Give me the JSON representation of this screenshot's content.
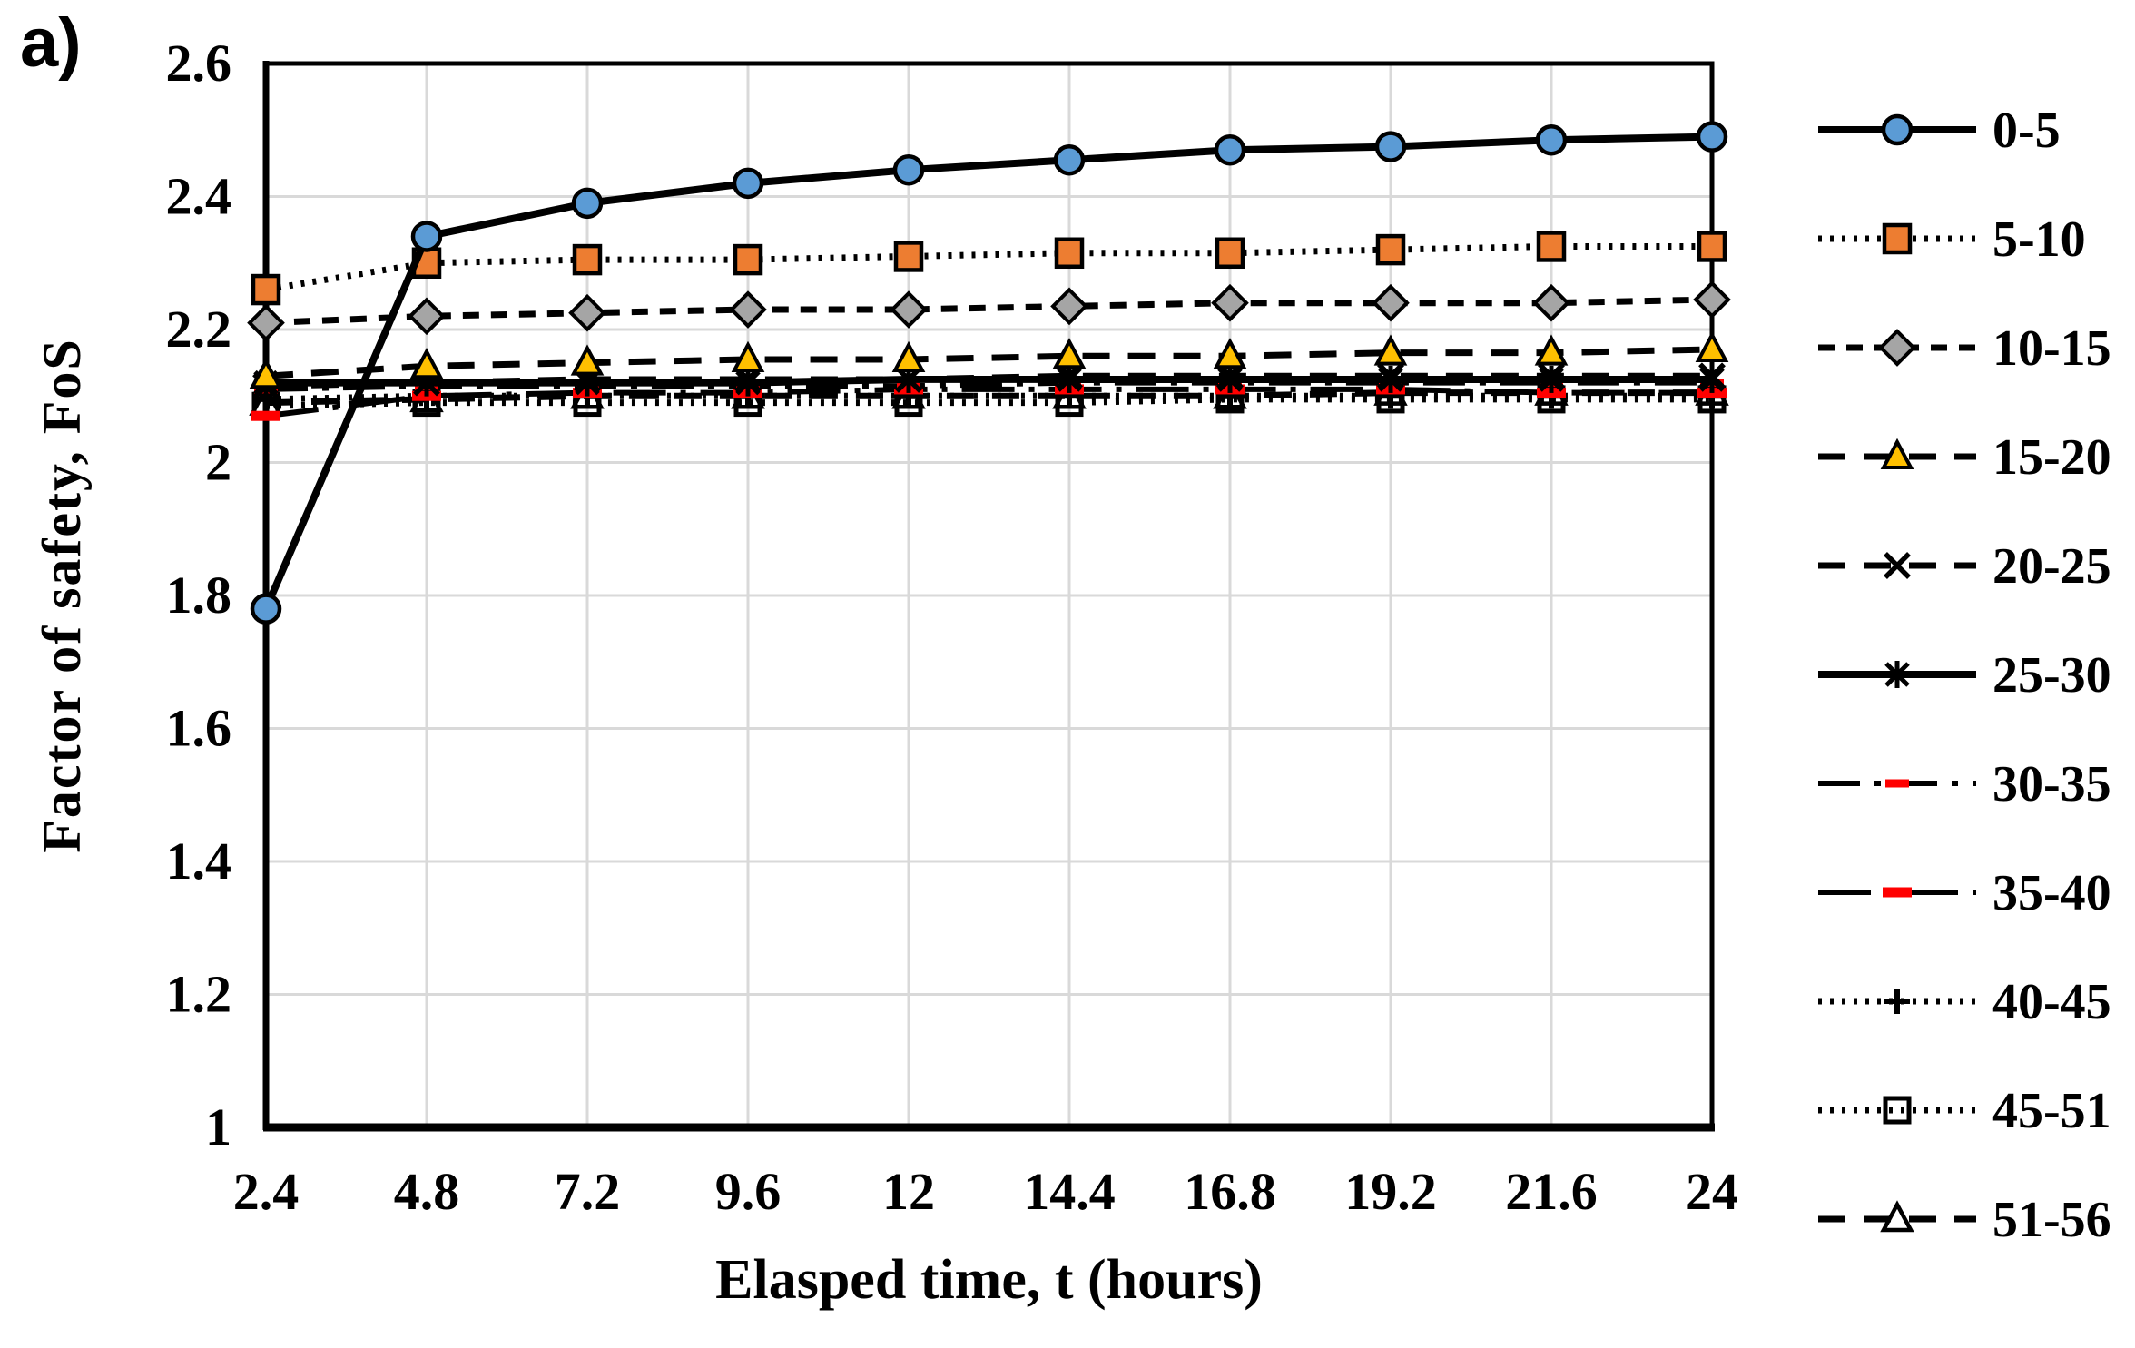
{
  "figure_label": "a)",
  "colors": {
    "background": "#FFFFFF",
    "grid": "#D9D9D9",
    "axis": "#000000",
    "series_blue": "#5B9BD5",
    "series_orange": "#ED7D31",
    "series_gray": "#A5A5A5",
    "series_yellow": "#FFC000",
    "series_red": "#FF0000",
    "series_black": "#000000"
  },
  "chart_data": {
    "type": "line",
    "title": "",
    "xlabel": "Elasped time, t (hours)",
    "ylabel": "Factor of safety, FoS",
    "xlim": [
      2.4,
      24
    ],
    "ylim": [
      1,
      2.6
    ],
    "grid": true,
    "legend_position": "right",
    "x": [
      2.4,
      4.8,
      7.2,
      9.6,
      12,
      14.4,
      16.8,
      19.2,
      21.6,
      24
    ],
    "xtick_labels": [
      "2.4",
      "4.8",
      "7.2",
      "9.6",
      "12",
      "14.4",
      "16.8",
      "19.2",
      "21.6",
      "24"
    ],
    "yticks": [
      1,
      1.2,
      1.4,
      1.6,
      1.8,
      2,
      2.2,
      2.4,
      2.6
    ],
    "ytick_labels": [
      "1",
      "1.2",
      "1.4",
      "1.6",
      "1.8",
      "2",
      "2.2",
      "2.4",
      "2.6"
    ],
    "series": [
      {
        "name": "0-5",
        "marker": "circle",
        "marker_color": "#5B9BD5",
        "line_color": "#000000",
        "line_style": "solid",
        "values": [
          1.78,
          2.34,
          2.39,
          2.42,
          2.44,
          2.455,
          2.47,
          2.475,
          2.485,
          2.49
        ]
      },
      {
        "name": "5-10",
        "marker": "square",
        "marker_color": "#ED7D31",
        "line_color": "#000000",
        "line_style": "dot",
        "values": [
          2.26,
          2.3,
          2.305,
          2.305,
          2.31,
          2.315,
          2.315,
          2.32,
          2.325,
          2.325
        ]
      },
      {
        "name": "10-15",
        "marker": "diamond",
        "marker_color": "#A5A5A5",
        "line_color": "#000000",
        "line_style": "dash",
        "values": [
          2.21,
          2.22,
          2.225,
          2.23,
          2.23,
          2.235,
          2.24,
          2.24,
          2.24,
          2.245
        ]
      },
      {
        "name": "15-20",
        "marker": "triangle",
        "marker_color": "#FFC000",
        "line_color": "#000000",
        "line_style": "longdash",
        "values": [
          2.13,
          2.145,
          2.15,
          2.155,
          2.155,
          2.16,
          2.16,
          2.165,
          2.165,
          2.17
        ]
      },
      {
        "name": "20-25",
        "marker": "x",
        "marker_color": "#000000",
        "line_color": "#000000",
        "line_style": "longdash",
        "values": [
          2.115,
          2.12,
          2.125,
          2.125,
          2.125,
          2.13,
          2.13,
          2.13,
          2.13,
          2.13
        ]
      },
      {
        "name": "25-30",
        "marker": "asterisk",
        "marker_color": "#000000",
        "line_color": "#000000",
        "line_style": "solid",
        "values": [
          2.12,
          2.12,
          2.12,
          2.12,
          2.125,
          2.125,
          2.125,
          2.125,
          2.125,
          2.125
        ]
      },
      {
        "name": "30-35",
        "marker": "dash-red",
        "marker_color": "#FF0000",
        "line_color": "#000000",
        "line_style": "longdashdot",
        "values": [
          2.11,
          2.115,
          2.115,
          2.115,
          2.115,
          2.12,
          2.12,
          2.12,
          2.12,
          2.12
        ]
      },
      {
        "name": "35-40",
        "marker": "rect-red",
        "marker_color": "#FF0000",
        "line_color": "#000000",
        "line_style": "longdashdot2",
        "values": [
          2.07,
          2.1,
          2.105,
          2.105,
          2.11,
          2.11,
          2.11,
          2.11,
          2.105,
          2.105
        ]
      },
      {
        "name": "40-45",
        "marker": "plus",
        "marker_color": "#000000",
        "line_color": "#000000",
        "line_style": "dot",
        "values": [
          2.095,
          2.1,
          2.1,
          2.1,
          2.1,
          2.1,
          2.1,
          2.1,
          2.1,
          2.1
        ]
      },
      {
        "name": "45-51",
        "marker": "square-open",
        "marker_color": "#000000",
        "line_color": "#000000",
        "line_style": "dot",
        "values": [
          2.085,
          2.09,
          2.09,
          2.09,
          2.09,
          2.09,
          2.095,
          2.095,
          2.095,
          2.095
        ]
      },
      {
        "name": "51-56",
        "marker": "triangle-open",
        "marker_color": "#000000",
        "line_color": "#000000",
        "line_style": "longdash",
        "values": [
          2.09,
          2.095,
          2.1,
          2.1,
          2.1,
          2.1,
          2.1,
          2.105,
          2.105,
          2.105
        ]
      }
    ]
  }
}
